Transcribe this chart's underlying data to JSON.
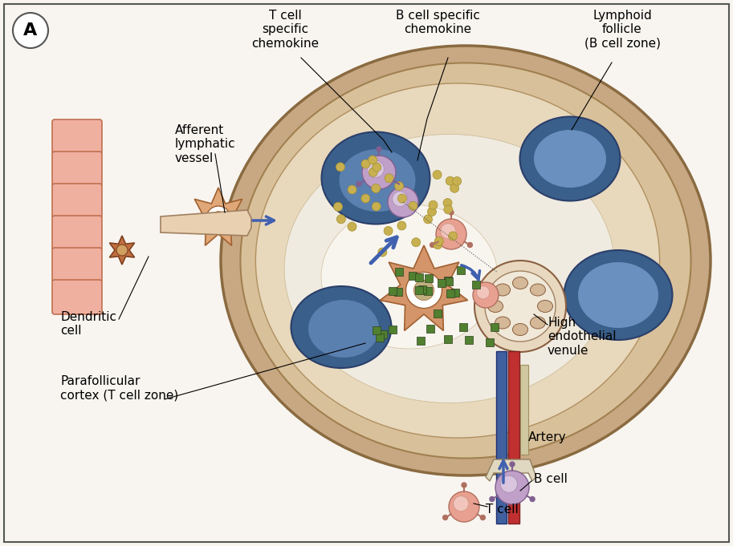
{
  "background_color": "#f8f5f0",
  "labels": {
    "T_cell_chemokine": "T cell\nspecific\nchemokine",
    "B_cell_chemokine": "B cell specific\nchemokine",
    "lymphoid_follicle": "Lymphoid\nfollicle\n(B cell zone)",
    "afferent_lymphatic": "Afferent\nlymphatic\nvessel",
    "dendritic_cell": "Dendritic\ncell",
    "parafollicular": "Parafollicular\ncortex (T cell zone)",
    "high_endothelial": "High\nendothelial\nvenule",
    "artery": "Artery",
    "b_cell": "B cell",
    "t_cell": "T cell"
  },
  "colors": {
    "lymph_node_outer": "#c8a882",
    "b_cell_zone": "#3a5f8a",
    "dendritic_star": "#d4956a",
    "b_cell_color": "#c0a0c8",
    "t_cell_color": "#e8a090",
    "artery_red": "#c03030",
    "artery_blue": "#4060a0",
    "arrow_blue": "#4060b0",
    "chemokine_dots": "#c8b050",
    "green_squares": "#508030",
    "pink_tissue": "#f0b0a0"
  }
}
